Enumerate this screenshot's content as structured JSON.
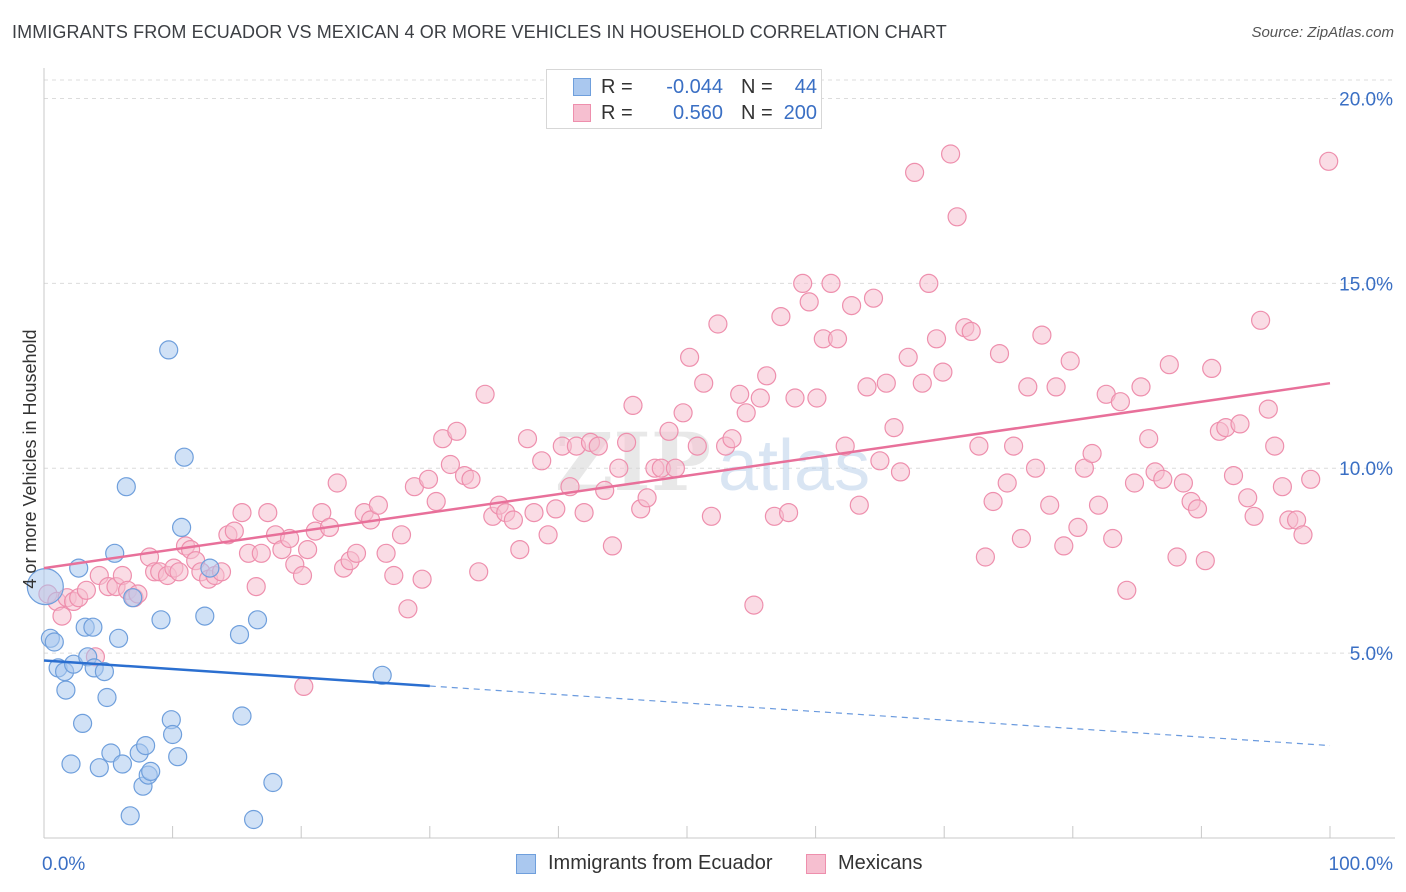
{
  "title": "IMMIGRANTS FROM ECUADOR VS MEXICAN 4 OR MORE VEHICLES IN HOUSEHOLD CORRELATION CHART",
  "source": "Source: ZipAtlas.com",
  "watermark": {
    "zip": "ZIP",
    "atlas": "atlas"
  },
  "colors": {
    "blue_fill": "#aac8ef",
    "blue_stroke": "#6f9fdc",
    "blue_line": "#2b6fd0",
    "pink_fill": "#f6bfd0",
    "pink_stroke": "#ee8fad",
    "pink_line": "#e8709a",
    "tick_label": "#3a6fc4",
    "grid": "#dcdcdc"
  },
  "legend": {
    "rows": [
      {
        "r_label": "R =",
        "r_value": "-0.044",
        "n_label": "N =",
        "n_value": "44"
      },
      {
        "r_label": "R =",
        "r_value": "0.560",
        "n_label": "N =",
        "n_value": "200"
      }
    ]
  },
  "bottom_legend": {
    "items": [
      "Immigrants from Ecuador",
      "Mexicans"
    ]
  },
  "chart_data": {
    "type": "scatter",
    "xlabel": "",
    "ylabel": "4 or more Vehicles in Household",
    "xlim": [
      0,
      100
    ],
    "ylim": [
      0,
      20.5
    ],
    "x_tick_labels": [
      "0.0%",
      "100.0%"
    ],
    "y_ticks": [
      5,
      10,
      15,
      20
    ],
    "y_tick_labels": [
      "5.0%",
      "10.0%",
      "15.0%",
      "20.0%"
    ],
    "grid": true,
    "legend_position": "top-center",
    "series": [
      {
        "name": "Immigrants from Ecuador",
        "color": "blue",
        "points": [
          [
            0.1,
            6.8
          ],
          [
            0.5,
            5.4
          ],
          [
            0.8,
            5.3
          ],
          [
            1.1,
            4.6
          ],
          [
            1.6,
            4.5
          ],
          [
            1.7,
            4.0
          ],
          [
            2.3,
            4.7
          ],
          [
            2.1,
            2.0
          ],
          [
            2.7,
            7.3
          ],
          [
            3.0,
            3.1
          ],
          [
            3.2,
            5.7
          ],
          [
            3.4,
            4.9
          ],
          [
            3.8,
            5.7
          ],
          [
            3.9,
            4.6
          ],
          [
            4.3,
            1.9
          ],
          [
            4.7,
            4.5
          ],
          [
            4.9,
            3.8
          ],
          [
            5.2,
            2.3
          ],
          [
            5.5,
            7.7
          ],
          [
            5.8,
            5.4
          ],
          [
            6.1,
            2.0
          ],
          [
            6.4,
            9.5
          ],
          [
            6.7,
            0.6
          ],
          [
            6.9,
            6.5
          ],
          [
            7.4,
            2.3
          ],
          [
            7.7,
            1.4
          ],
          [
            7.9,
            2.5
          ],
          [
            8.1,
            1.7
          ],
          [
            8.3,
            1.8
          ],
          [
            9.1,
            5.9
          ],
          [
            9.7,
            13.2
          ],
          [
            9.9,
            3.2
          ],
          [
            10.0,
            2.8
          ],
          [
            10.4,
            2.2
          ],
          [
            10.7,
            8.4
          ],
          [
            10.9,
            10.3
          ],
          [
            12.5,
            6.0
          ],
          [
            12.9,
            7.3
          ],
          [
            15.2,
            5.5
          ],
          [
            15.4,
            3.3
          ],
          [
            16.3,
            0.5
          ],
          [
            16.6,
            5.9
          ],
          [
            17.8,
            1.5
          ],
          [
            26.3,
            4.4
          ]
        ]
      },
      {
        "name": "Mexicans",
        "color": "pink",
        "points": [
          [
            0.3,
            6.6
          ],
          [
            1.0,
            6.4
          ],
          [
            1.4,
            6.0
          ],
          [
            1.8,
            6.5
          ],
          [
            2.3,
            6.4
          ],
          [
            2.7,
            6.5
          ],
          [
            3.3,
            6.7
          ],
          [
            4.0,
            4.9
          ],
          [
            4.3,
            7.1
          ],
          [
            5.0,
            6.8
          ],
          [
            5.6,
            6.8
          ],
          [
            6.1,
            7.1
          ],
          [
            6.5,
            6.7
          ],
          [
            7.0,
            6.5
          ],
          [
            7.3,
            6.6
          ],
          [
            8.2,
            7.6
          ],
          [
            8.6,
            7.2
          ],
          [
            9.0,
            7.2
          ],
          [
            9.6,
            7.1
          ],
          [
            10.1,
            7.3
          ],
          [
            10.5,
            7.2
          ],
          [
            11.0,
            7.9
          ],
          [
            11.4,
            7.8
          ],
          [
            11.8,
            7.5
          ],
          [
            12.2,
            7.2
          ],
          [
            12.8,
            7.0
          ],
          [
            13.3,
            7.1
          ],
          [
            13.8,
            7.2
          ],
          [
            14.3,
            8.2
          ],
          [
            14.8,
            8.3
          ],
          [
            15.4,
            8.8
          ],
          [
            15.9,
            7.7
          ],
          [
            16.5,
            6.8
          ],
          [
            16.9,
            7.7
          ],
          [
            17.4,
            8.8
          ],
          [
            18.0,
            8.2
          ],
          [
            18.5,
            7.8
          ],
          [
            19.1,
            8.1
          ],
          [
            19.5,
            7.4
          ],
          [
            20.1,
            7.1
          ],
          [
            20.5,
            7.8
          ],
          [
            21.1,
            8.3
          ],
          [
            21.6,
            8.8
          ],
          [
            22.2,
            8.4
          ],
          [
            22.8,
            9.6
          ],
          [
            23.3,
            7.3
          ],
          [
            23.8,
            7.5
          ],
          [
            24.3,
            7.7
          ],
          [
            24.9,
            8.8
          ],
          [
            25.4,
            8.6
          ],
          [
            26.0,
            9.0
          ],
          [
            26.6,
            7.7
          ],
          [
            27.2,
            7.1
          ],
          [
            27.8,
            8.2
          ],
          [
            28.3,
            6.2
          ],
          [
            28.8,
            9.5
          ],
          [
            29.4,
            7.0
          ],
          [
            29.9,
            9.7
          ],
          [
            30.5,
            9.1
          ],
          [
            31.0,
            10.8
          ],
          [
            31.6,
            10.1
          ],
          [
            32.1,
            11.0
          ],
          [
            32.7,
            9.8
          ],
          [
            33.2,
            9.7
          ],
          [
            33.8,
            7.2
          ],
          [
            34.3,
            12.0
          ],
          [
            34.9,
            8.7
          ],
          [
            35.4,
            9.0
          ],
          [
            35.9,
            8.8
          ],
          [
            36.5,
            8.6
          ],
          [
            37.0,
            7.8
          ],
          [
            37.6,
            10.8
          ],
          [
            38.1,
            8.8
          ],
          [
            38.7,
            10.2
          ],
          [
            39.2,
            8.2
          ],
          [
            39.8,
            8.9
          ],
          [
            40.3,
            10.6
          ],
          [
            40.9,
            9.5
          ],
          [
            41.4,
            10.6
          ],
          [
            42.0,
            8.8
          ],
          [
            42.5,
            10.7
          ],
          [
            43.1,
            10.6
          ],
          [
            43.6,
            9.4
          ],
          [
            44.2,
            7.9
          ],
          [
            44.7,
            10.0
          ],
          [
            45.3,
            10.7
          ],
          [
            45.8,
            11.7
          ],
          [
            46.4,
            8.9
          ],
          [
            46.9,
            9.2
          ],
          [
            47.5,
            10.0
          ],
          [
            48.0,
            10.0
          ],
          [
            48.6,
            11.0
          ],
          [
            49.1,
            10.0
          ],
          [
            49.7,
            11.5
          ],
          [
            50.2,
            13.0
          ],
          [
            50.8,
            10.6
          ],
          [
            51.3,
            12.3
          ],
          [
            51.9,
            8.7
          ],
          [
            52.4,
            13.9
          ],
          [
            53.0,
            10.6
          ],
          [
            53.5,
            10.8
          ],
          [
            54.1,
            12.0
          ],
          [
            54.6,
            11.5
          ],
          [
            55.2,
            6.3
          ],
          [
            55.7,
            11.9
          ],
          [
            56.2,
            12.5
          ],
          [
            56.8,
            8.7
          ],
          [
            57.3,
            14.1
          ],
          [
            57.9,
            8.8
          ],
          [
            58.4,
            11.9
          ],
          [
            59.0,
            15.0
          ],
          [
            59.5,
            14.5
          ],
          [
            60.1,
            11.9
          ],
          [
            60.6,
            13.5
          ],
          [
            61.2,
            15.0
          ],
          [
            61.7,
            13.5
          ],
          [
            62.3,
            10.6
          ],
          [
            62.8,
            14.4
          ],
          [
            63.4,
            9.0
          ],
          [
            64.0,
            12.2
          ],
          [
            64.5,
            14.6
          ],
          [
            65.0,
            10.2
          ],
          [
            65.5,
            12.3
          ],
          [
            66.1,
            11.1
          ],
          [
            66.6,
            9.9
          ],
          [
            67.2,
            13.0
          ],
          [
            67.7,
            18.0
          ],
          [
            68.3,
            12.3
          ],
          [
            68.8,
            15.0
          ],
          [
            69.4,
            13.5
          ],
          [
            69.9,
            12.6
          ],
          [
            70.5,
            18.5
          ],
          [
            71.0,
            16.8
          ],
          [
            71.6,
            13.8
          ],
          [
            72.1,
            13.7
          ],
          [
            72.7,
            10.6
          ],
          [
            73.2,
            7.6
          ],
          [
            73.8,
            9.1
          ],
          [
            74.3,
            13.1
          ],
          [
            74.9,
            9.6
          ],
          [
            75.4,
            10.6
          ],
          [
            76.0,
            8.1
          ],
          [
            76.5,
            12.2
          ],
          [
            77.1,
            10.0
          ],
          [
            77.6,
            13.6
          ],
          [
            78.2,
            9.0
          ],
          [
            78.7,
            12.2
          ],
          [
            79.3,
            7.9
          ],
          [
            79.8,
            12.9
          ],
          [
            80.4,
            8.4
          ],
          [
            80.9,
            10.0
          ],
          [
            81.5,
            10.4
          ],
          [
            82.0,
            9.0
          ],
          [
            82.6,
            12.0
          ],
          [
            83.1,
            8.1
          ],
          [
            83.7,
            11.8
          ],
          [
            84.2,
            6.7
          ],
          [
            84.8,
            9.6
          ],
          [
            85.3,
            12.2
          ],
          [
            85.9,
            10.8
          ],
          [
            86.4,
            9.9
          ],
          [
            87.0,
            9.7
          ],
          [
            87.5,
            12.8
          ],
          [
            88.1,
            7.6
          ],
          [
            88.6,
            9.6
          ],
          [
            89.2,
            9.1
          ],
          [
            89.7,
            8.9
          ],
          [
            90.3,
            7.5
          ],
          [
            90.8,
            12.7
          ],
          [
            91.4,
            11.0
          ],
          [
            91.9,
            11.1
          ],
          [
            92.5,
            9.8
          ],
          [
            93.0,
            11.2
          ],
          [
            93.6,
            9.2
          ],
          [
            94.1,
            8.7
          ],
          [
            94.6,
            14.0
          ],
          [
            95.2,
            11.6
          ],
          [
            95.7,
            10.6
          ],
          [
            96.3,
            9.5
          ],
          [
            96.8,
            8.6
          ],
          [
            97.4,
            8.6
          ],
          [
            97.9,
            8.2
          ],
          [
            98.5,
            9.7
          ],
          [
            99.9,
            18.3
          ],
          [
            20.2,
            4.1
          ]
        ]
      }
    ],
    "trend_lines": [
      {
        "series": "Immigrants from Ecuador",
        "x_start": 0,
        "x_end": 100,
        "solid_until": 30,
        "y_start": 4.8,
        "y_end": 2.5
      },
      {
        "series": "Mexicans",
        "x_start": 0,
        "x_end": 100,
        "y_start": 7.3,
        "y_end": 12.3
      }
    ]
  }
}
